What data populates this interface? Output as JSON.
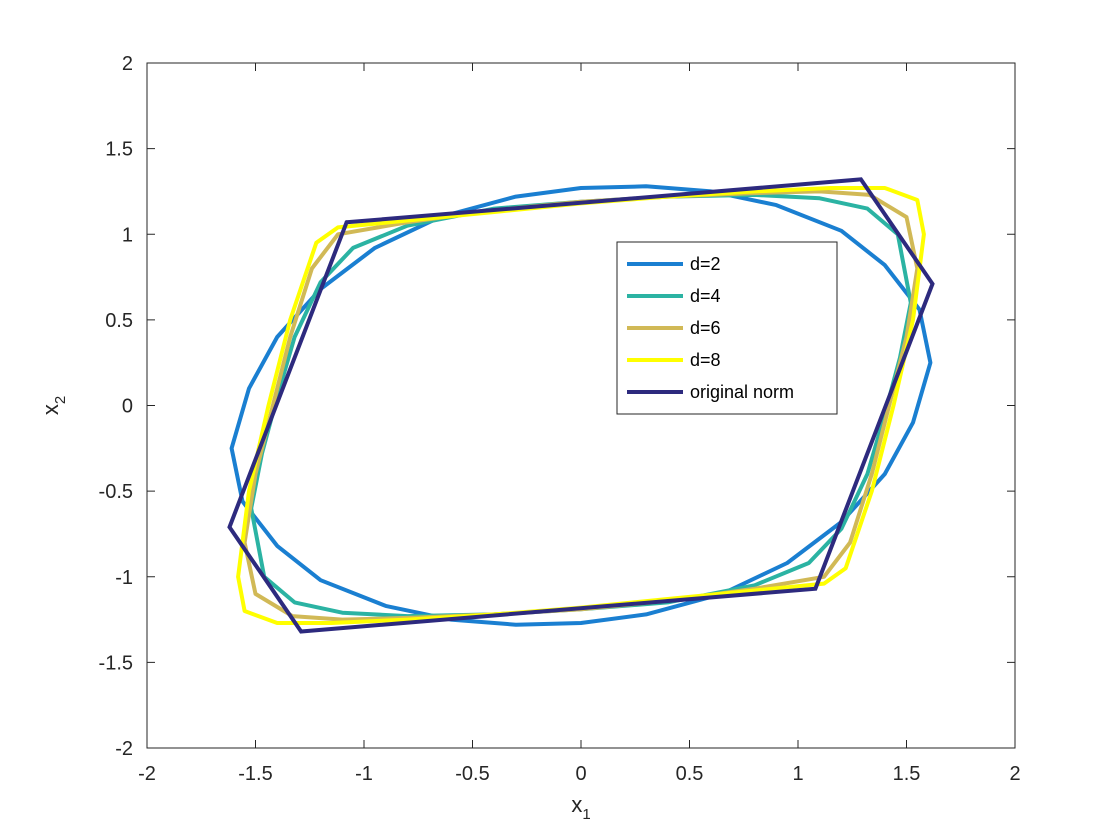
{
  "chart_data": {
    "type": "line",
    "title": "",
    "xlabel": {
      "base": "x",
      "sub": "1"
    },
    "ylabel": {
      "base": "x",
      "sub": "2"
    },
    "xlim": [
      -2,
      2
    ],
    "ylim": [
      -2,
      2
    ],
    "x_ticks": [
      "-2",
      "-1.5",
      "-1",
      "-0.5",
      "0",
      "0.5",
      "1",
      "1.5",
      "2"
    ],
    "y_ticks": [
      "-2",
      "-1.5",
      "-1",
      "-0.5",
      "0",
      "0.5",
      "1",
      "1.5",
      "2"
    ],
    "x_tick_values": [
      -2,
      -1.5,
      -1,
      -0.5,
      0,
      0.5,
      1,
      1.5,
      2
    ],
    "y_tick_values": [
      -2,
      -1.5,
      -1,
      -0.5,
      0,
      0.5,
      1,
      1.5,
      2
    ],
    "grid": false,
    "legend_position": "upper-right-inside",
    "series": [
      {
        "name": "d=2",
        "color": "#1a7fd1",
        "points": [
          [
            -1.56,
            -0.56
          ],
          [
            -1.61,
            -0.25
          ],
          [
            -1.53,
            0.1
          ],
          [
            -1.4,
            0.4
          ],
          [
            -1.2,
            0.68
          ],
          [
            -0.95,
            0.92
          ],
          [
            -0.65,
            1.1
          ],
          [
            -0.3,
            1.22
          ],
          [
            0.0,
            1.27
          ],
          [
            0.3,
            1.28
          ],
          [
            0.6,
            1.25
          ],
          [
            0.9,
            1.17
          ],
          [
            1.2,
            1.02
          ],
          [
            1.4,
            0.82
          ],
          [
            1.56,
            0.56
          ],
          [
            1.61,
            0.25
          ],
          [
            1.53,
            -0.1
          ],
          [
            1.4,
            -0.4
          ],
          [
            1.2,
            -0.68
          ],
          [
            0.95,
            -0.92
          ],
          [
            0.65,
            -1.1
          ],
          [
            0.3,
            -1.22
          ],
          [
            0.0,
            -1.27
          ],
          [
            -0.3,
            -1.28
          ],
          [
            -0.6,
            -1.25
          ],
          [
            -0.9,
            -1.17
          ],
          [
            -1.2,
            -1.02
          ],
          [
            -1.4,
            -0.82
          ],
          [
            -1.56,
            -0.56
          ]
        ]
      },
      {
        "name": "d=4",
        "color": "#2bb3a3",
        "points": [
          [
            -1.52,
            -0.6
          ],
          [
            -1.47,
            -0.28
          ],
          [
            -1.4,
            0.05
          ],
          [
            -1.32,
            0.4
          ],
          [
            -1.2,
            0.72
          ],
          [
            -1.05,
            0.92
          ],
          [
            -0.8,
            1.05
          ],
          [
            -0.4,
            1.15
          ],
          [
            0.0,
            1.19
          ],
          [
            0.4,
            1.22
          ],
          [
            0.8,
            1.23
          ],
          [
            1.1,
            1.21
          ],
          [
            1.32,
            1.15
          ],
          [
            1.46,
            1.0
          ],
          [
            1.52,
            0.6
          ],
          [
            1.47,
            0.28
          ],
          [
            1.4,
            -0.05
          ],
          [
            1.32,
            -0.4
          ],
          [
            1.2,
            -0.72
          ],
          [
            1.05,
            -0.92
          ],
          [
            0.8,
            -1.05
          ],
          [
            0.4,
            -1.15
          ],
          [
            0.0,
            -1.19
          ],
          [
            -0.4,
            -1.22
          ],
          [
            -0.8,
            -1.23
          ],
          [
            -1.1,
            -1.21
          ],
          [
            -1.32,
            -1.15
          ],
          [
            -1.46,
            -1.0
          ],
          [
            -1.52,
            -0.6
          ]
        ]
      },
      {
        "name": "d=6",
        "color": "#d1b956",
        "points": [
          [
            -1.55,
            -0.8
          ],
          [
            -1.5,
            -0.4
          ],
          [
            -1.42,
            0.0
          ],
          [
            -1.34,
            0.4
          ],
          [
            -1.24,
            0.8
          ],
          [
            -1.12,
            1.0
          ],
          [
            -0.8,
            1.07
          ],
          [
            -0.4,
            1.14
          ],
          [
            0.0,
            1.19
          ],
          [
            0.4,
            1.22
          ],
          [
            0.8,
            1.24
          ],
          [
            1.1,
            1.25
          ],
          [
            1.33,
            1.23
          ],
          [
            1.5,
            1.1
          ],
          [
            1.55,
            0.8
          ],
          [
            1.5,
            0.4
          ],
          [
            1.42,
            0.0
          ],
          [
            1.34,
            -0.4
          ],
          [
            1.24,
            -0.8
          ],
          [
            1.12,
            -1.0
          ],
          [
            0.8,
            -1.07
          ],
          [
            0.4,
            -1.14
          ],
          [
            0.0,
            -1.19
          ],
          [
            -0.4,
            -1.22
          ],
          [
            -0.8,
            -1.24
          ],
          [
            -1.1,
            -1.25
          ],
          [
            -1.33,
            -1.23
          ],
          [
            -1.5,
            -1.1
          ],
          [
            -1.55,
            -0.8
          ]
        ]
      },
      {
        "name": "d=8",
        "color": "#ffff00",
        "points": [
          [
            -1.58,
            -1.0
          ],
          [
            -1.53,
            -0.5
          ],
          [
            -1.44,
            0.0
          ],
          [
            -1.34,
            0.5
          ],
          [
            -1.22,
            0.95
          ],
          [
            -1.12,
            1.04
          ],
          [
            -0.8,
            1.08
          ],
          [
            -0.4,
            1.13
          ],
          [
            0.0,
            1.18
          ],
          [
            0.4,
            1.22
          ],
          [
            0.8,
            1.25
          ],
          [
            1.15,
            1.27
          ],
          [
            1.4,
            1.27
          ],
          [
            1.55,
            1.2
          ],
          [
            1.58,
            1.0
          ],
          [
            1.53,
            0.5
          ],
          [
            1.44,
            0.0
          ],
          [
            1.34,
            -0.5
          ],
          [
            1.22,
            -0.95
          ],
          [
            1.12,
            -1.04
          ],
          [
            0.8,
            -1.08
          ],
          [
            0.4,
            -1.13
          ],
          [
            0.0,
            -1.18
          ],
          [
            -0.4,
            -1.22
          ],
          [
            -0.8,
            -1.25
          ],
          [
            -1.15,
            -1.27
          ],
          [
            -1.4,
            -1.27
          ],
          [
            -1.55,
            -1.2
          ],
          [
            -1.58,
            -1.0
          ]
        ]
      },
      {
        "name": "original norm",
        "color": "#2d2a7e",
        "points": [
          [
            -1.08,
            1.07
          ],
          [
            1.29,
            1.32
          ],
          [
            1.62,
            0.71
          ],
          [
            1.08,
            -1.07
          ],
          [
            -1.29,
            -1.32
          ],
          [
            -1.62,
            -0.71
          ],
          [
            -1.08,
            1.07
          ]
        ]
      }
    ]
  }
}
